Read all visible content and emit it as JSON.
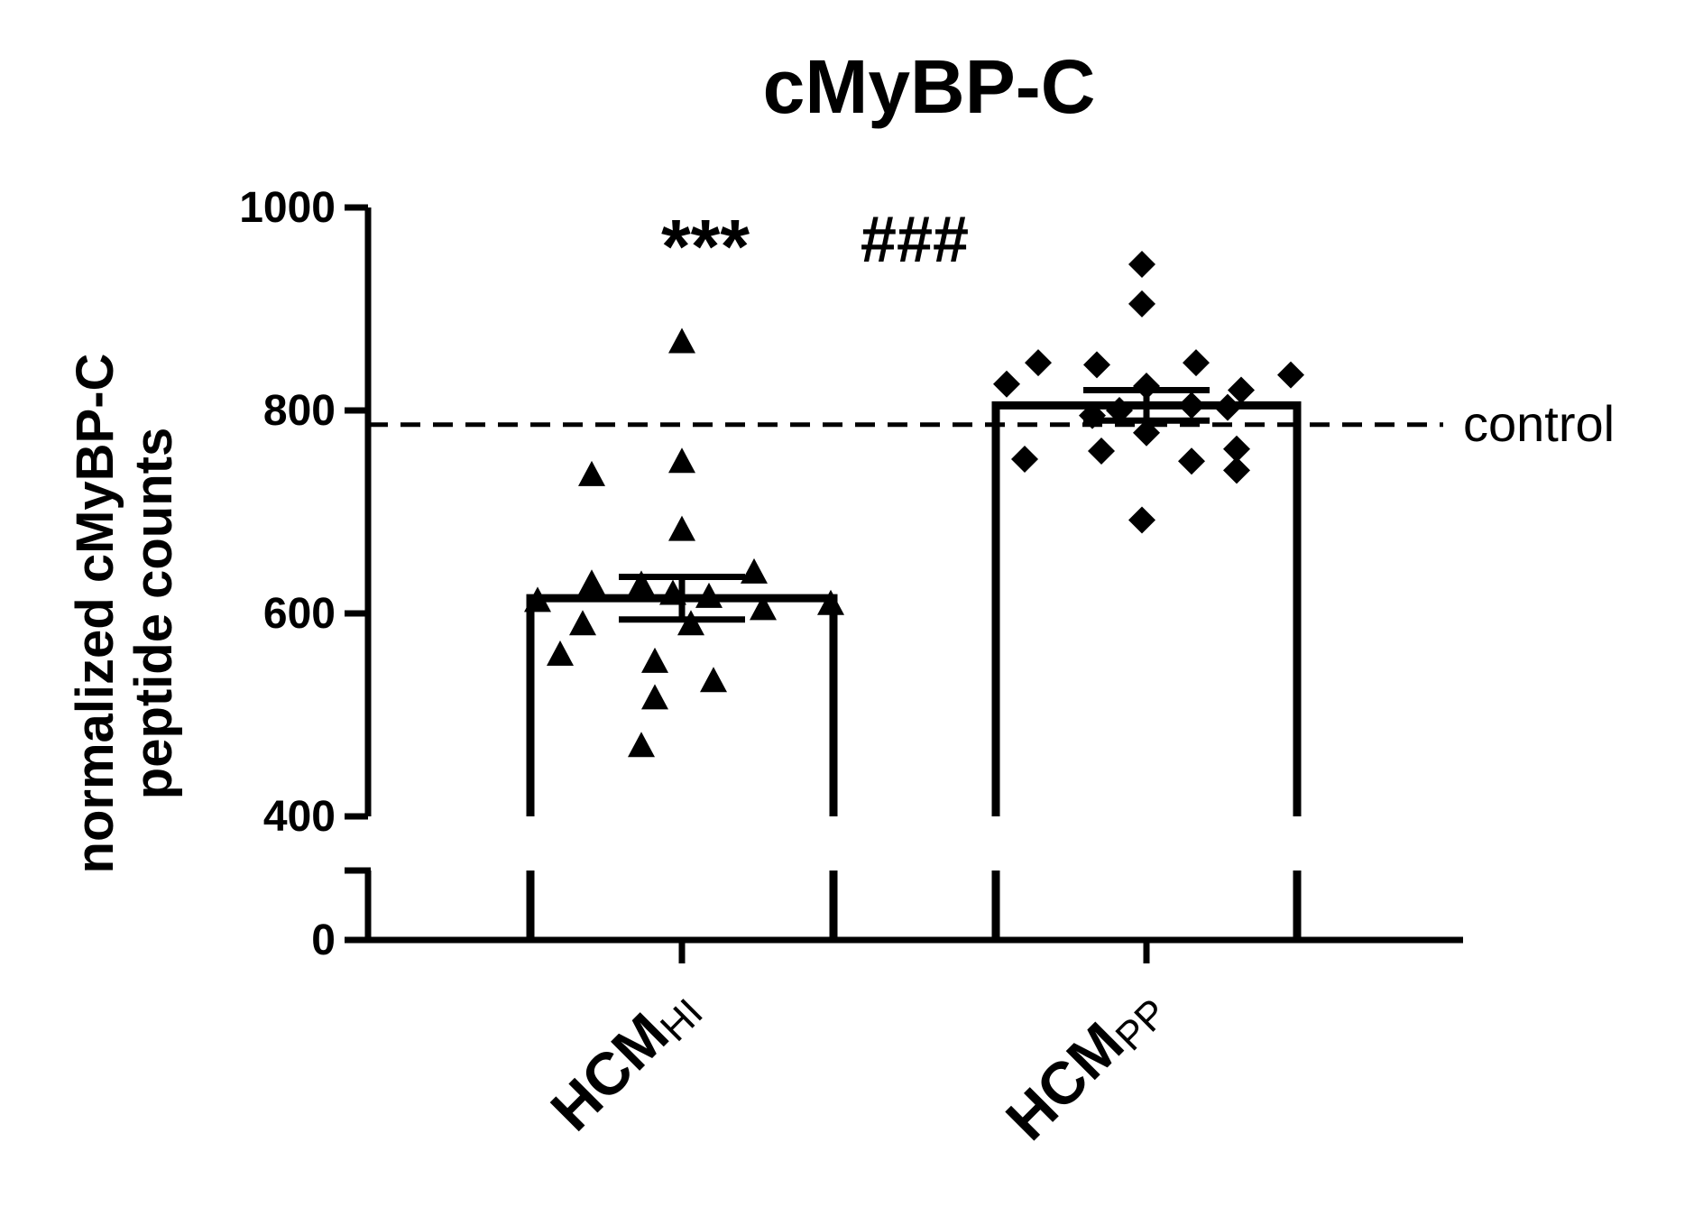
{
  "chart_data": {
    "type": "bar",
    "title": "cMyBP-C",
    "ylabel": [
      "normalized cMyBP-C",
      "peptide counts"
    ],
    "xlabel": "",
    "ylim": [
      0,
      1000
    ],
    "y_axis_break": [
      400,
      400
    ],
    "y_ticks": [
      0,
      400,
      600,
      800,
      1000
    ],
    "y_tick_labels": [
      "0",
      "400",
      "600",
      "800",
      "1000"
    ],
    "categories": [
      {
        "main": "HCM",
        "sub": "HI"
      },
      {
        "main": "HCM",
        "sub": "PP"
      }
    ],
    "bars": [
      {
        "mean": 615,
        "sem": 21,
        "marker": "triangle",
        "points": [
          868,
          750,
          737,
          683,
          641,
          630,
          629,
          620,
          617,
          613,
          610,
          605,
          590,
          590,
          560,
          553,
          534,
          517,
          470
        ]
      },
      {
        "mean": 805,
        "sem": 15,
        "marker": "diamond",
        "points": [
          944,
          905,
          847,
          847,
          845,
          835,
          826,
          824,
          820,
          805,
          803,
          800,
          795,
          778,
          762,
          760,
          752,
          750,
          741,
          692
        ]
      }
    ],
    "reference_line": {
      "value": 786,
      "label": "control"
    },
    "annotations": [
      {
        "text": "***"
      },
      {
        "text": "###"
      }
    ],
    "grid": false,
    "legend": "none"
  }
}
